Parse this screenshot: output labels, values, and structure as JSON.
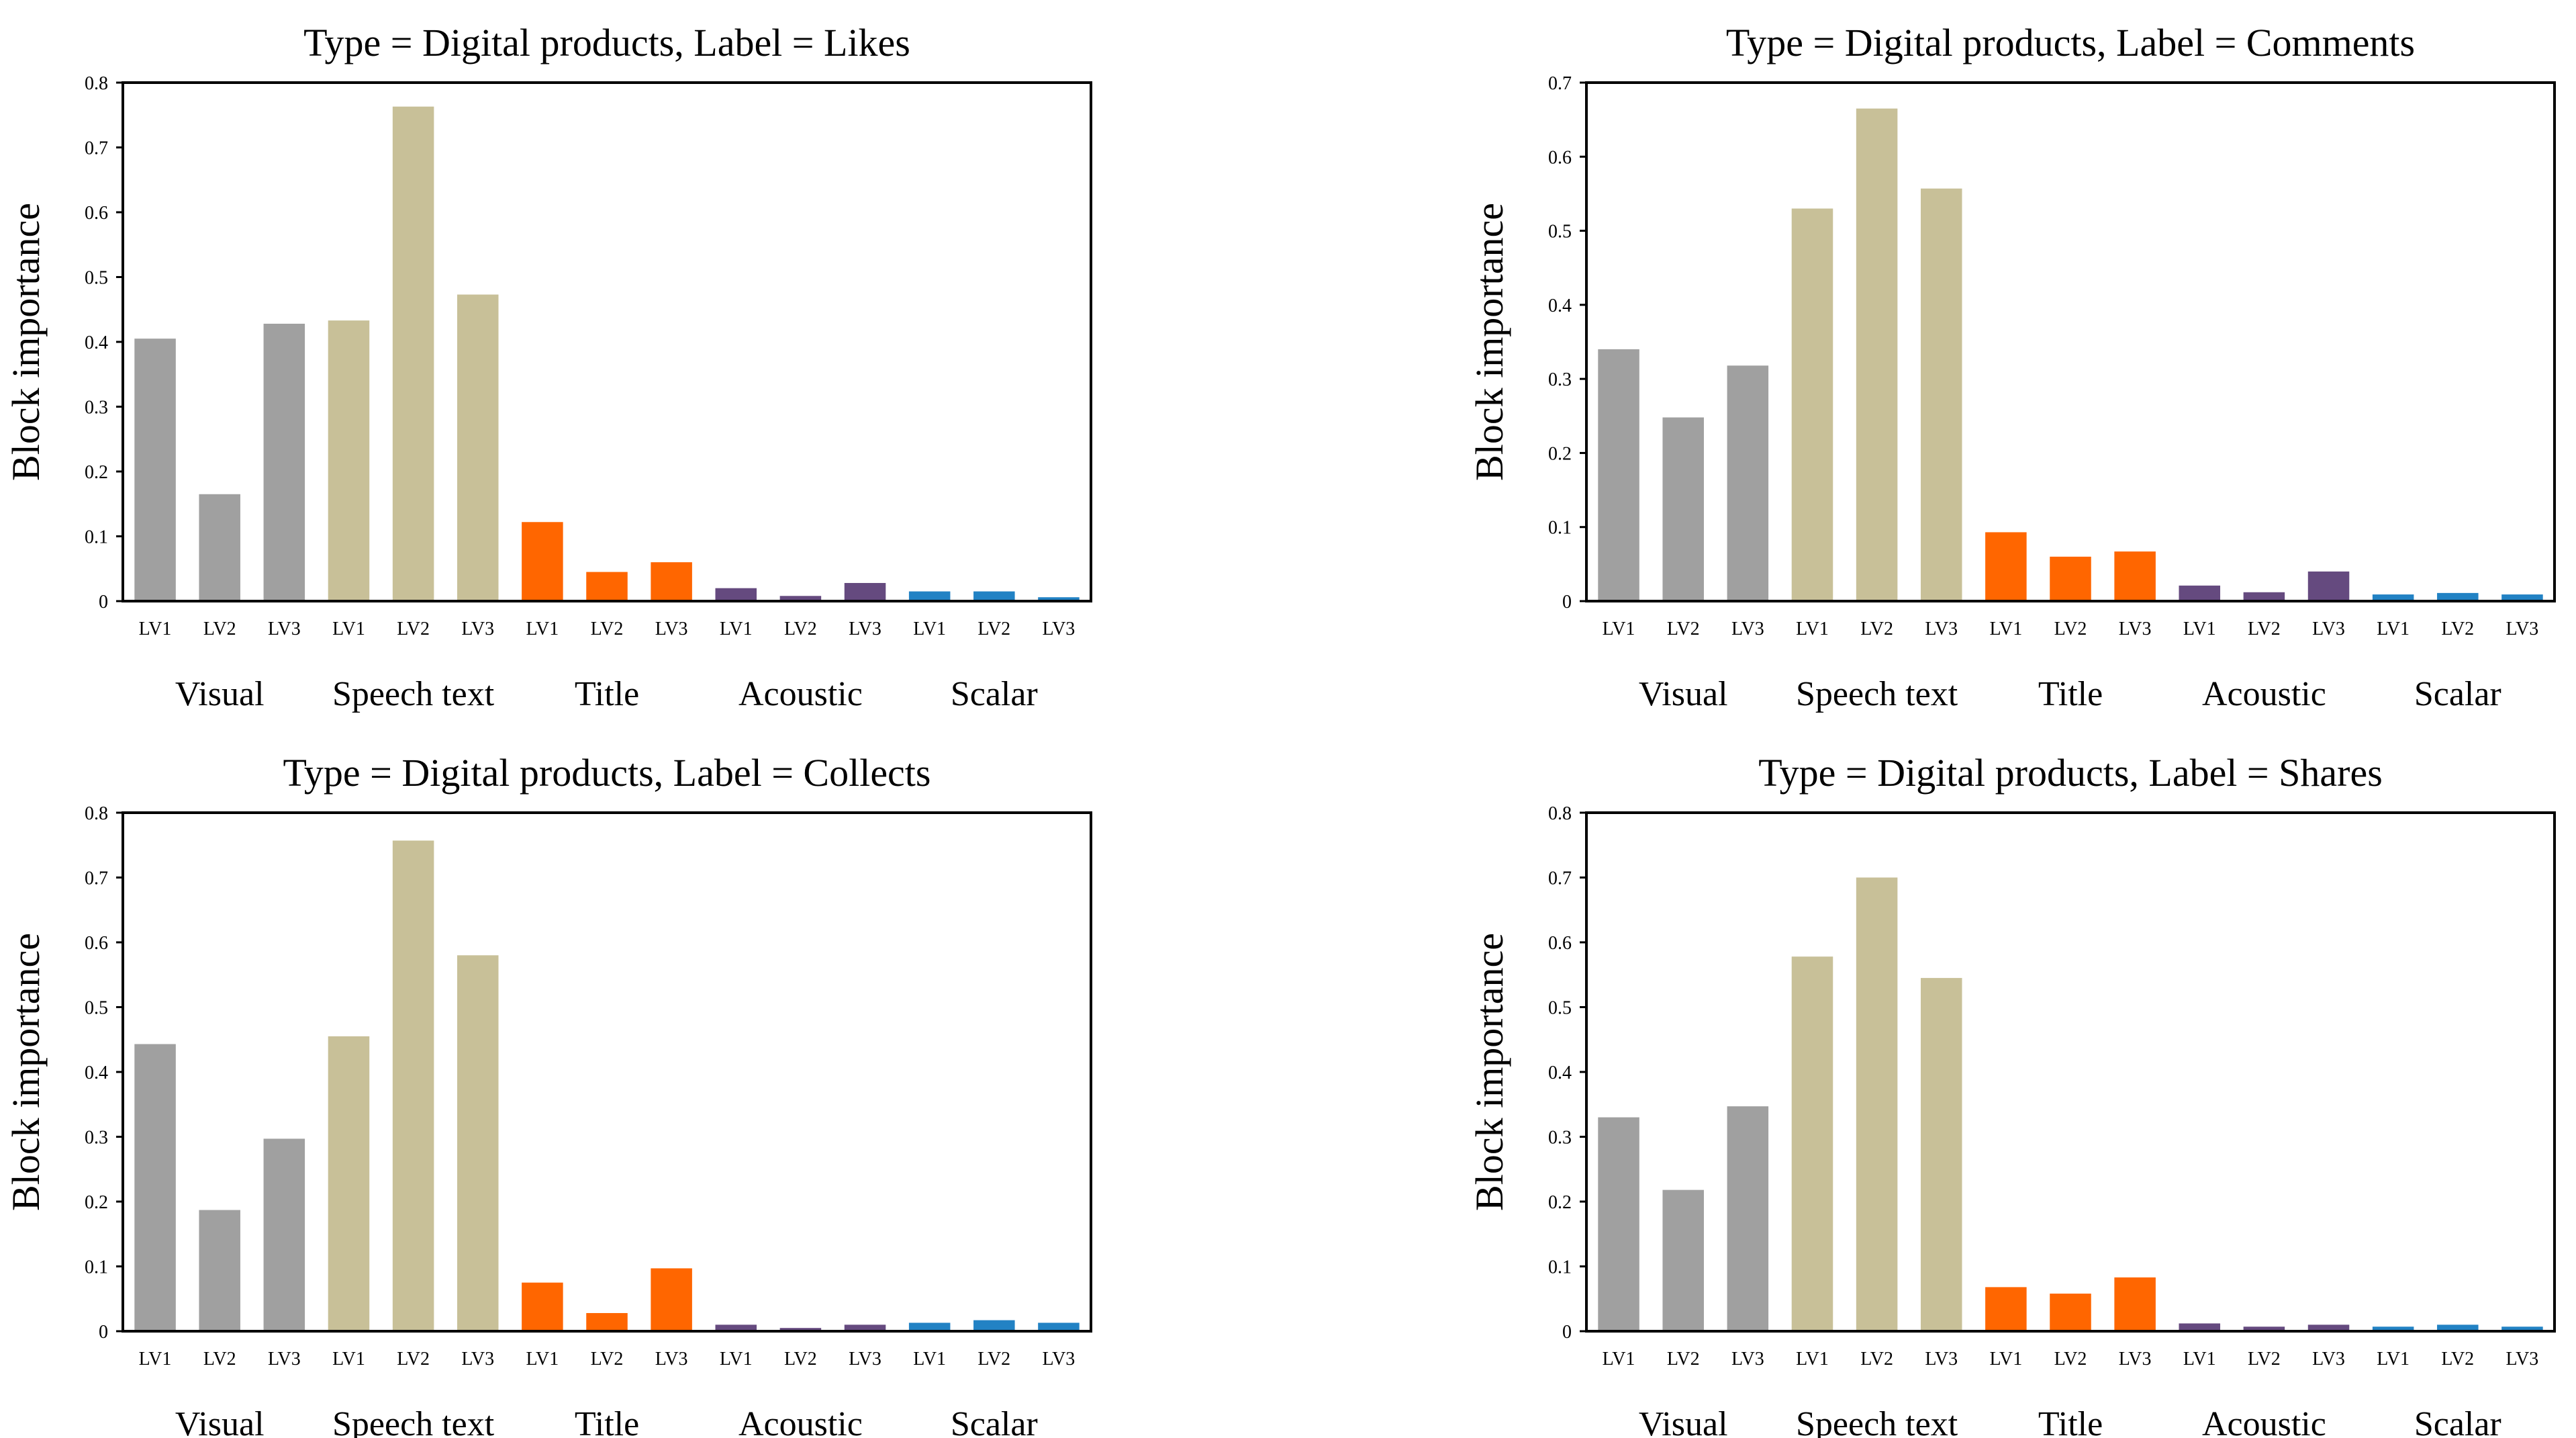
{
  "colors": {
    "visual": "#a0a0a0",
    "speech": "#c8c098",
    "title": "#ff6600",
    "acoustic": "#654a7f",
    "scalar": "#2282c4"
  },
  "chart_data": [
    {
      "type": "bar",
      "title": "Type = Digital products, Label = Likes",
      "ylabel": "Block importance",
      "ylim": [
        0,
        0.8
      ],
      "yticks": [
        "0",
        "0.1",
        "0.2",
        "0.3",
        "0.4",
        "0.5",
        "0.6",
        "0.7",
        "0.8"
      ],
      "categories": [
        "LV1",
        "LV2",
        "LV3",
        "LV1",
        "LV2",
        "LV3",
        "LV1",
        "LV2",
        "LV3",
        "LV1",
        "LV2",
        "LV3",
        "LV1",
        "LV2",
        "LV3"
      ],
      "groups": [
        "Visual",
        "Speech text",
        "Title",
        "Acoustic",
        "Scalar"
      ],
      "values": [
        0.405,
        0.165,
        0.428,
        0.433,
        0.763,
        0.473,
        0.122,
        0.045,
        0.06,
        0.02,
        0.008,
        0.028,
        0.015,
        0.015,
        0.006
      ]
    },
    {
      "type": "bar",
      "title": "Type = Digital products, Label = Comments",
      "ylabel": "Block importance",
      "ylim": [
        0,
        0.7
      ],
      "yticks": [
        "0",
        "0.1",
        "0.2",
        "0.3",
        "0.4",
        "0.5",
        "0.6",
        "0.7"
      ],
      "categories": [
        "LV1",
        "LV2",
        "LV3",
        "LV1",
        "LV2",
        "LV3",
        "LV1",
        "LV2",
        "LV3",
        "LV1",
        "LV2",
        "LV3",
        "LV1",
        "LV2",
        "LV3"
      ],
      "groups": [
        "Visual",
        "Speech text",
        "Title",
        "Acoustic",
        "Scalar"
      ],
      "values": [
        0.34,
        0.248,
        0.318,
        0.53,
        0.665,
        0.557,
        0.093,
        0.06,
        0.067,
        0.021,
        0.012,
        0.04,
        0.009,
        0.011,
        0.009
      ]
    },
    {
      "type": "bar",
      "title": "Type = Digital products, Label = Collects",
      "ylabel": "Block importance",
      "ylim": [
        0,
        0.8
      ],
      "yticks": [
        "0",
        "0.1",
        "0.2",
        "0.3",
        "0.4",
        "0.5",
        "0.6",
        "0.7",
        "0.8"
      ],
      "categories": [
        "LV1",
        "LV2",
        "LV3",
        "LV1",
        "LV2",
        "LV3",
        "LV1",
        "LV2",
        "LV3",
        "LV1",
        "LV2",
        "LV3",
        "LV1",
        "LV2",
        "LV3"
      ],
      "groups": [
        "Visual",
        "Speech text",
        "Title",
        "Acoustic",
        "Scalar"
      ],
      "values": [
        0.443,
        0.187,
        0.297,
        0.455,
        0.757,
        0.58,
        0.075,
        0.028,
        0.097,
        0.01,
        0.005,
        0.01,
        0.013,
        0.017,
        0.013
      ]
    },
    {
      "type": "bar",
      "title": "Type = Digital products, Label = Shares",
      "ylabel": "Block importance",
      "ylim": [
        0,
        0.8
      ],
      "yticks": [
        "0",
        "0.1",
        "0.2",
        "0.3",
        "0.4",
        "0.5",
        "0.6",
        "0.7",
        "0.8"
      ],
      "categories": [
        "LV1",
        "LV2",
        "LV3",
        "LV1",
        "LV2",
        "LV3",
        "LV1",
        "LV2",
        "LV3",
        "LV1",
        "LV2",
        "LV3",
        "LV1",
        "LV2",
        "LV3"
      ],
      "groups": [
        "Visual",
        "Speech text",
        "Title",
        "Acoustic",
        "Scalar"
      ],
      "values": [
        0.33,
        0.218,
        0.347,
        0.578,
        0.7,
        0.545,
        0.068,
        0.058,
        0.083,
        0.012,
        0.007,
        0.01,
        0.007,
        0.01,
        0.007
      ]
    }
  ]
}
